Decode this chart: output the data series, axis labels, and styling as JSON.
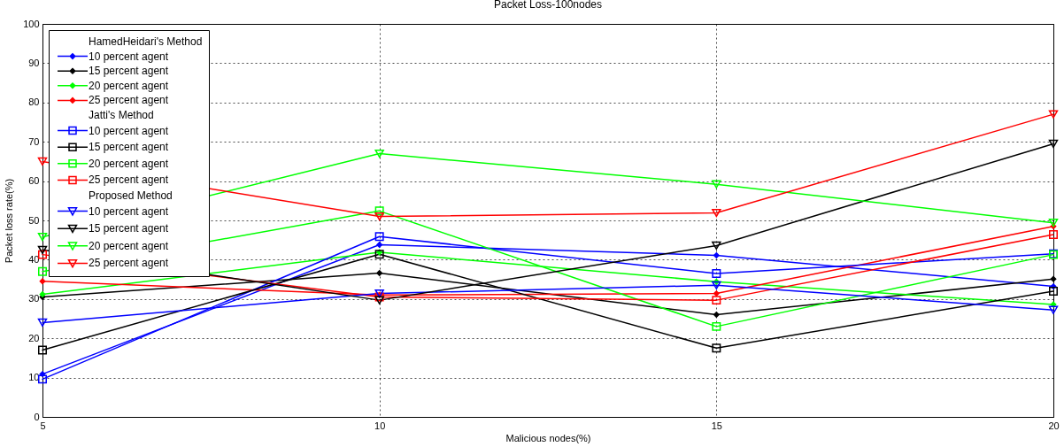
{
  "chart_data": {
    "type": "line",
    "title": "Packet Loss-100nodes",
    "xlabel": "Malicious nodes(%)",
    "ylabel": "Packet loss rate(%)",
    "x": [
      5,
      10,
      15,
      20
    ],
    "xlim": [
      5,
      20
    ],
    "xticks": [
      5,
      10,
      15,
      20
    ],
    "ylim": [
      0,
      100
    ],
    "yticks": [
      0,
      10,
      20,
      30,
      40,
      50,
      60,
      70,
      80,
      90,
      100
    ],
    "grid": true,
    "legend": "top left",
    "series": [
      {
        "name": "HamedHeidari's Method",
        "values": [
          null,
          null,
          null,
          null
        ]
      },
      {
        "name": "10 percent agent",
        "color": "#0000ff",
        "marker": "diamond",
        "values": [
          10.9,
          43.8,
          41.1,
          33.2
        ]
      },
      {
        "name": "15 percent agent",
        "color": "#000000",
        "marker": "diamond",
        "values": [
          30.5,
          36.6,
          26.0,
          35.1
        ]
      },
      {
        "name": "20 percent agent",
        "color": "#00ff00",
        "marker": "diamond",
        "values": [
          31.2,
          41.9,
          34.4,
          28.6
        ]
      },
      {
        "name": "25 percent agent",
        "color": "#ff0000",
        "marker": "diamond",
        "values": [
          34.5,
          31.0,
          31.4,
          48.5
        ]
      },
      {
        "name": "Jatti's Method",
        "values": [
          null,
          null,
          null,
          null
        ]
      },
      {
        "name": "10 percent agent",
        "color": "#0000ff",
        "marker": "square",
        "values": [
          9.6,
          45.9,
          36.5,
          41.5
        ]
      },
      {
        "name": "15 percent agent",
        "color": "#000000",
        "marker": "square",
        "values": [
          17.0,
          41.4,
          17.5,
          32.0
        ]
      },
      {
        "name": "20 percent agent",
        "color": "#00ff00",
        "marker": "square",
        "values": [
          37.0,
          52.4,
          23.0,
          41.3
        ]
      },
      {
        "name": "25 percent agent",
        "color": "#ff0000",
        "marker": "square",
        "values": [
          41.3,
          30.5,
          29.7,
          46.4
        ]
      },
      {
        "name": "Proposed Method",
        "values": [
          null,
          null,
          null,
          null
        ]
      },
      {
        "name": "10 percent agent",
        "color": "#0000ff",
        "marker": "triangle",
        "values": [
          24.0,
          31.4,
          33.5,
          27.2
        ]
      },
      {
        "name": "15 percent agent",
        "color": "#000000",
        "marker": "triangle",
        "values": [
          42.5,
          29.7,
          43.6,
          69.5
        ]
      },
      {
        "name": "20 percent agent",
        "color": "#00ff00",
        "marker": "triangle",
        "values": [
          45.8,
          67.0,
          59.2,
          49.4
        ]
      },
      {
        "name": "25 percent agent",
        "color": "#ff0000",
        "marker": "triangle",
        "values": [
          65.0,
          51.0,
          51.9,
          77.0
        ]
      }
    ]
  }
}
